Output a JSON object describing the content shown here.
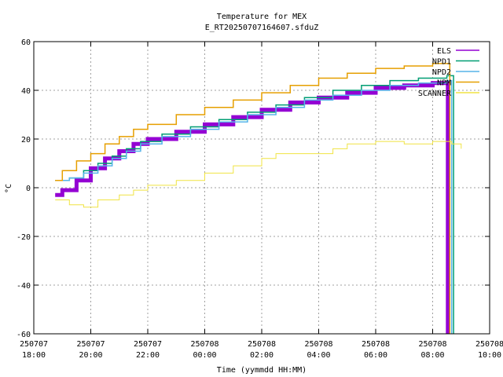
{
  "chart_data": {
    "type": "line",
    "title": "Temperature for MEX",
    "subtitle": "E_RT20250707164607.sfduZ",
    "xlabel": "Time (yymmdd HH:MM)",
    "ylabel": "°C",
    "xlim": [
      "2025-07-07 18:00",
      "2025-07-08 10:00"
    ],
    "ylim": [
      -60,
      60
    ],
    "grid": true,
    "legend_position": "top-right",
    "x_ticks": [
      {
        "t": "2025-07-07 18:00",
        "date": "250707",
        "time": "18:00"
      },
      {
        "t": "2025-07-07 20:00",
        "date": "250707",
        "time": "20:00"
      },
      {
        "t": "2025-07-07 22:00",
        "date": "250707",
        "time": "22:00"
      },
      {
        "t": "2025-07-08 00:00",
        "date": "250708",
        "time": "00:00"
      },
      {
        "t": "2025-07-08 02:00",
        "date": "250708",
        "time": "02:00"
      },
      {
        "t": "2025-07-08 04:00",
        "date": "250708",
        "time": "04:00"
      },
      {
        "t": "2025-07-08 06:00",
        "date": "250708",
        "time": "06:00"
      },
      {
        "t": "2025-07-08 08:00",
        "date": "250708",
        "time": "08:00"
      },
      {
        "t": "2025-07-08 10:00",
        "date": "250708",
        "time": "10:00"
      }
    ],
    "y_ticks": [
      -60,
      -40,
      -20,
      0,
      20,
      40,
      60
    ],
    "series": [
      {
        "name": "ELS",
        "color": "#9400d3",
        "width": 5,
        "points": [
          [
            "2025-07-07 18:45",
            -3
          ],
          [
            "2025-07-07 19:00",
            -1
          ],
          [
            "2025-07-07 19:30",
            3
          ],
          [
            "2025-07-07 20:00",
            8
          ],
          [
            "2025-07-07 20:30",
            12
          ],
          [
            "2025-07-07 21:00",
            15
          ],
          [
            "2025-07-07 21:30",
            18
          ],
          [
            "2025-07-07 22:00",
            20
          ],
          [
            "2025-07-07 23:00",
            23
          ],
          [
            "2025-07-08 00:00",
            26
          ],
          [
            "2025-07-08 01:00",
            29
          ],
          [
            "2025-07-08 02:00",
            32
          ],
          [
            "2025-07-08 03:00",
            35
          ],
          [
            "2025-07-08 04:00",
            37
          ],
          [
            "2025-07-08 05:00",
            39
          ],
          [
            "2025-07-08 06:00",
            41
          ],
          [
            "2025-07-08 07:00",
            42
          ],
          [
            "2025-07-08 08:00",
            43
          ],
          [
            "2025-07-08 08:30",
            43
          ],
          [
            "2025-07-08 08:32",
            -60
          ]
        ]
      },
      {
        "name": "NPD1",
        "color": "#009e73",
        "width": 1.5,
        "points": [
          [
            "2025-07-07 18:45",
            3
          ],
          [
            "2025-07-07 19:15",
            4
          ],
          [
            "2025-07-07 19:45",
            7
          ],
          [
            "2025-07-07 20:15",
            10
          ],
          [
            "2025-07-07 20:45",
            13
          ],
          [
            "2025-07-07 21:15",
            16
          ],
          [
            "2025-07-07 21:45",
            19
          ],
          [
            "2025-07-07 22:30",
            22
          ],
          [
            "2025-07-07 23:30",
            25
          ],
          [
            "2025-07-08 00:30",
            28
          ],
          [
            "2025-07-08 01:30",
            31
          ],
          [
            "2025-07-08 02:30",
            34
          ],
          [
            "2025-07-08 03:30",
            37
          ],
          [
            "2025-07-08 04:30",
            40
          ],
          [
            "2025-07-08 05:30",
            42
          ],
          [
            "2025-07-08 06:30",
            44
          ],
          [
            "2025-07-08 07:30",
            45
          ],
          [
            "2025-07-08 08:30",
            46
          ],
          [
            "2025-07-08 08:42",
            46
          ],
          [
            "2025-07-08 08:44",
            -60
          ]
        ]
      },
      {
        "name": "NPD2",
        "color": "#56b4e9",
        "width": 1.5,
        "points": [
          [
            "2025-07-07 18:45",
            3
          ],
          [
            "2025-07-07 19:15",
            4
          ],
          [
            "2025-07-07 19:45",
            6
          ],
          [
            "2025-07-07 20:15",
            9
          ],
          [
            "2025-07-07 20:45",
            12
          ],
          [
            "2025-07-07 21:15",
            15
          ],
          [
            "2025-07-07 21:45",
            18
          ],
          [
            "2025-07-07 22:30",
            21
          ],
          [
            "2025-07-07 23:30",
            24
          ],
          [
            "2025-07-08 00:30",
            27
          ],
          [
            "2025-07-08 01:30",
            30
          ],
          [
            "2025-07-08 02:30",
            33
          ],
          [
            "2025-07-08 03:30",
            36
          ],
          [
            "2025-07-08 04:30",
            38
          ],
          [
            "2025-07-08 05:30",
            40
          ],
          [
            "2025-07-08 06:30",
            42
          ],
          [
            "2025-07-08 07:30",
            43
          ],
          [
            "2025-07-08 08:30",
            44
          ],
          [
            "2025-07-08 08:38",
            44
          ],
          [
            "2025-07-08 08:40",
            -60
          ]
        ]
      },
      {
        "name": "NPM",
        "color": "#e69f00",
        "width": 1.5,
        "points": [
          [
            "2025-07-07 18:45",
            3
          ],
          [
            "2025-07-07 19:00",
            7
          ],
          [
            "2025-07-07 19:30",
            11
          ],
          [
            "2025-07-07 20:00",
            14
          ],
          [
            "2025-07-07 20:30",
            18
          ],
          [
            "2025-07-07 21:00",
            21
          ],
          [
            "2025-07-07 21:30",
            24
          ],
          [
            "2025-07-07 22:00",
            26
          ],
          [
            "2025-07-07 23:00",
            30
          ],
          [
            "2025-07-08 00:00",
            33
          ],
          [
            "2025-07-08 01:00",
            36
          ],
          [
            "2025-07-08 02:00",
            39
          ],
          [
            "2025-07-08 03:00",
            42
          ],
          [
            "2025-07-08 04:00",
            45
          ],
          [
            "2025-07-08 05:00",
            47
          ],
          [
            "2025-07-08 06:00",
            49
          ],
          [
            "2025-07-08 07:00",
            50
          ],
          [
            "2025-07-08 08:00",
            51
          ],
          [
            "2025-07-08 08:34",
            51
          ],
          [
            "2025-07-08 08:36",
            -60
          ]
        ]
      },
      {
        "name": "SCANNER",
        "color": "#f0e442",
        "width": 1,
        "points": [
          [
            "2025-07-07 18:45",
            -5
          ],
          [
            "2025-07-07 19:15",
            -7
          ],
          [
            "2025-07-07 19:45",
            -8
          ],
          [
            "2025-07-07 20:15",
            -5
          ],
          [
            "2025-07-07 21:00",
            -3
          ],
          [
            "2025-07-07 21:30",
            -1
          ],
          [
            "2025-07-07 22:00",
            1
          ],
          [
            "2025-07-07 23:00",
            3
          ],
          [
            "2025-07-08 00:00",
            6
          ],
          [
            "2025-07-08 01:00",
            9
          ],
          [
            "2025-07-08 02:00",
            12
          ],
          [
            "2025-07-08 02:30",
            14
          ],
          [
            "2025-07-08 03:30",
            14
          ],
          [
            "2025-07-08 04:30",
            16
          ],
          [
            "2025-07-08 05:00",
            18
          ],
          [
            "2025-07-08 06:00",
            19
          ],
          [
            "2025-07-08 07:00",
            18
          ],
          [
            "2025-07-08 08:00",
            19
          ],
          [
            "2025-07-08 08:40",
            18
          ],
          [
            "2025-07-08 09:00",
            16
          ]
        ]
      }
    ]
  }
}
